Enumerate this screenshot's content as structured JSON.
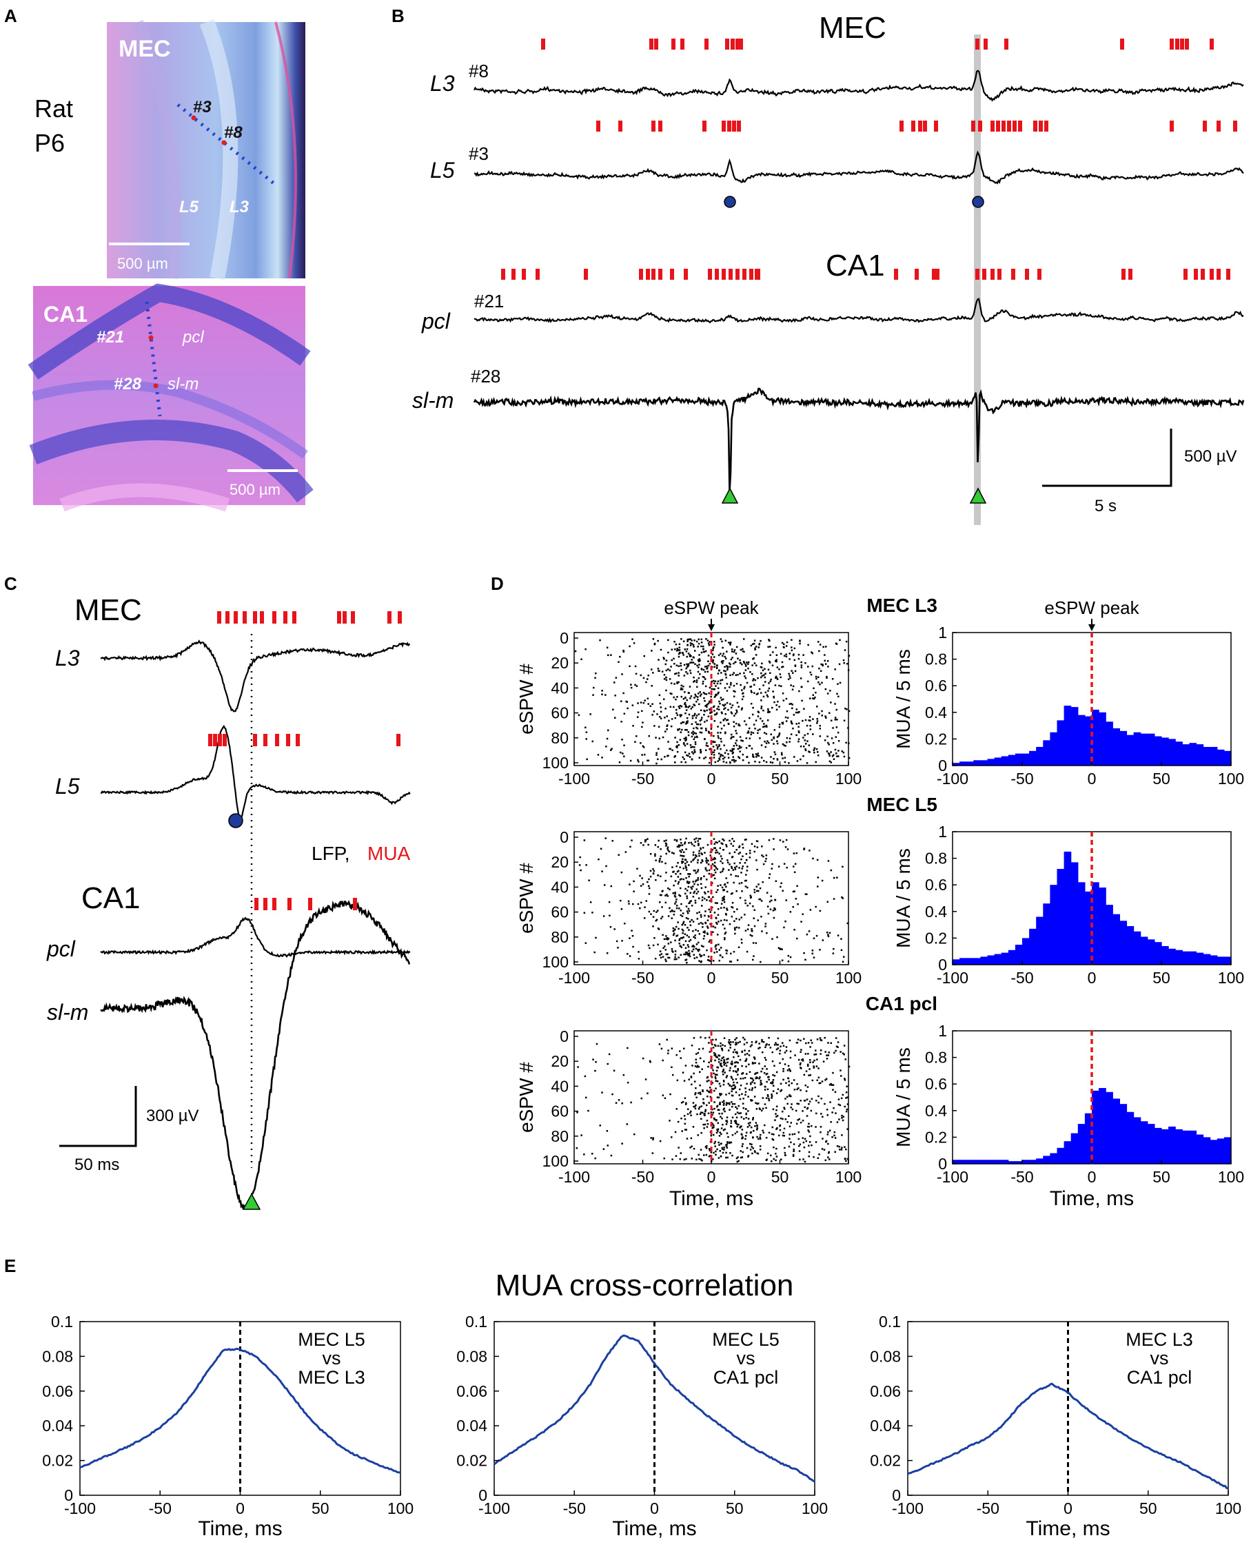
{
  "panels": {
    "A": "A",
    "B": "B",
    "C": "C",
    "D": "D",
    "E": "E"
  },
  "panel_a": {
    "species": "Rat",
    "age": "P6",
    "mec_label": "MEC",
    "ch3": "#3",
    "ch8": "#8",
    "l5": "L5",
    "l3": "L3",
    "scale_mec": "500 µm",
    "ca1_label": "CA1",
    "ch21": "#21",
    "pcl": "pcl",
    "ch28": "#28",
    "slm": "sl-m",
    "scale_ca1": "500 µm"
  },
  "panel_b": {
    "mec_title": "MEC",
    "ca1_title": "CA1",
    "traces": [
      {
        "layer": "L3",
        "channel": "#8"
      },
      {
        "layer": "L5",
        "channel": "#3"
      },
      {
        "layer": "pcl",
        "channel": "#21"
      },
      {
        "layer": "sl-m",
        "channel": "#28"
      }
    ],
    "scale_v": "500 µV",
    "scale_t": "5 s"
  },
  "panel_c": {
    "mec_title": "MEC",
    "l3": "L3",
    "l5": "L5",
    "legend_lfp": "LFP,",
    "legend_mua": "MUA",
    "ca1_title": "CA1",
    "pcl": "pcl",
    "slm": "sl-m",
    "scale_v": "300 µV",
    "scale_t": "50 ms"
  },
  "panel_d": {
    "peak_label": "eSPW peak",
    "rows": [
      {
        "title": "MEC L3"
      },
      {
        "title": "MEC L5"
      },
      {
        "title": "CA1 pcl"
      }
    ],
    "raster_ylabel": "eSPW #",
    "hist_ylabel": "MUA / 5 ms",
    "xlabel": "Time, ms",
    "x_ticks": [
      "-100",
      "-50",
      "0",
      "50",
      "100"
    ],
    "raster_y_ticks": [
      "0",
      "20",
      "40",
      "60",
      "80",
      "100"
    ],
    "hist_y_ticks": [
      "0",
      "0.2",
      "0.4",
      "0.6",
      "0.8",
      "1"
    ]
  },
  "panel_e": {
    "title": "MUA cross-correlation",
    "xlabel": "Time, ms",
    "x_ticks": [
      "-100",
      "-50",
      "0",
      "50",
      "100"
    ],
    "y_ticks": [
      "0",
      "0.02",
      "0.04",
      "0.06",
      "0.08",
      "0.1"
    ],
    "plots": [
      {
        "l1": "MEC L5",
        "l2": "vs",
        "l3": "MEC L3"
      },
      {
        "l1": "MEC L5",
        "l2": "vs",
        "l3": "CA1 pcl"
      },
      {
        "l1": "MEC L3",
        "l2": "vs",
        "l3": "CA1 pcl"
      }
    ]
  },
  "chart_data": [
    {
      "type": "bar",
      "title": "MEC L3",
      "xlabel": "Time, ms",
      "ylabel": "MUA / 5 ms",
      "xlim": [
        -100,
        100
      ],
      "ylim": [
        0,
        1
      ],
      "bin_width_ms": 5,
      "x": [
        -97.5,
        -92.5,
        -87.5,
        -82.5,
        -77.5,
        -72.5,
        -67.5,
        -62.5,
        -57.5,
        -52.5,
        -47.5,
        -42.5,
        -37.5,
        -32.5,
        -27.5,
        -22.5,
        -17.5,
        -12.5,
        -7.5,
        -2.5,
        2.5,
        7.5,
        12.5,
        17.5,
        22.5,
        27.5,
        32.5,
        37.5,
        42.5,
        47.5,
        52.5,
        57.5,
        62.5,
        67.5,
        72.5,
        77.5,
        82.5,
        87.5,
        92.5,
        97.5
      ],
      "values": [
        0.02,
        0.03,
        0.03,
        0.04,
        0.04,
        0.05,
        0.06,
        0.07,
        0.08,
        0.09,
        0.09,
        0.11,
        0.14,
        0.19,
        0.25,
        0.34,
        0.45,
        0.44,
        0.38,
        0.37,
        0.42,
        0.4,
        0.33,
        0.28,
        0.26,
        0.23,
        0.25,
        0.24,
        0.24,
        0.22,
        0.21,
        0.2,
        0.18,
        0.16,
        0.17,
        0.16,
        0.14,
        0.14,
        0.12,
        0.11
      ]
    },
    {
      "type": "bar",
      "title": "MEC L5",
      "xlabel": "Time, ms",
      "ylabel": "MUA / 5 ms",
      "xlim": [
        -100,
        100
      ],
      "ylim": [
        0,
        1
      ],
      "bin_width_ms": 5,
      "x": [
        -97.5,
        -92.5,
        -87.5,
        -82.5,
        -77.5,
        -72.5,
        -67.5,
        -62.5,
        -57.5,
        -52.5,
        -47.5,
        -42.5,
        -37.5,
        -32.5,
        -27.5,
        -22.5,
        -17.5,
        -12.5,
        -7.5,
        -2.5,
        2.5,
        7.5,
        12.5,
        17.5,
        22.5,
        27.5,
        32.5,
        37.5,
        42.5,
        47.5,
        52.5,
        57.5,
        62.5,
        67.5,
        72.5,
        77.5,
        82.5,
        87.5,
        92.5,
        97.5
      ],
      "values": [
        0.04,
        0.05,
        0.05,
        0.05,
        0.06,
        0.07,
        0.08,
        0.09,
        0.11,
        0.15,
        0.2,
        0.27,
        0.36,
        0.46,
        0.6,
        0.72,
        0.85,
        0.77,
        0.62,
        0.55,
        0.62,
        0.58,
        0.45,
        0.38,
        0.33,
        0.29,
        0.25,
        0.21,
        0.19,
        0.17,
        0.14,
        0.12,
        0.11,
        0.1,
        0.1,
        0.09,
        0.08,
        0.07,
        0.06,
        0.06
      ]
    },
    {
      "type": "bar",
      "title": "CA1 pcl",
      "xlabel": "Time, ms",
      "ylabel": "MUA / 5 ms",
      "xlim": [
        -100,
        100
      ],
      "ylim": [
        0,
        1
      ],
      "bin_width_ms": 5,
      "x": [
        -97.5,
        -92.5,
        -87.5,
        -82.5,
        -77.5,
        -72.5,
        -67.5,
        -62.5,
        -57.5,
        -52.5,
        -47.5,
        -42.5,
        -37.5,
        -32.5,
        -27.5,
        -22.5,
        -17.5,
        -12.5,
        -7.5,
        -2.5,
        2.5,
        7.5,
        12.5,
        17.5,
        22.5,
        27.5,
        32.5,
        37.5,
        42.5,
        47.5,
        52.5,
        57.5,
        62.5,
        67.5,
        72.5,
        77.5,
        82.5,
        87.5,
        92.5,
        97.5
      ],
      "values": [
        0.03,
        0.03,
        0.03,
        0.03,
        0.03,
        0.03,
        0.03,
        0.03,
        0.02,
        0.02,
        0.03,
        0.03,
        0.04,
        0.06,
        0.08,
        0.12,
        0.17,
        0.23,
        0.3,
        0.38,
        0.55,
        0.57,
        0.54,
        0.49,
        0.45,
        0.39,
        0.35,
        0.32,
        0.3,
        0.27,
        0.26,
        0.28,
        0.26,
        0.25,
        0.25,
        0.22,
        0.2,
        0.18,
        0.19,
        0.2
      ]
    },
    {
      "type": "line",
      "title": "MEC L5 vs MEC L3",
      "xlabel": "Time, ms",
      "xlim": [
        -100,
        100
      ],
      "ylim": [
        0,
        0.1
      ],
      "x": [
        -100,
        -90,
        -80,
        -70,
        -60,
        -50,
        -40,
        -30,
        -20,
        -10,
        0,
        10,
        20,
        30,
        40,
        50,
        60,
        70,
        80,
        90,
        100
      ],
      "values": [
        0.016,
        0.02,
        0.024,
        0.028,
        0.033,
        0.039,
        0.047,
        0.058,
        0.072,
        0.084,
        0.084,
        0.08,
        0.071,
        0.06,
        0.048,
        0.038,
        0.03,
        0.024,
        0.02,
        0.016,
        0.013
      ]
    },
    {
      "type": "line",
      "title": "MEC L5 vs CA1 pcl",
      "xlabel": "Time, ms",
      "xlim": [
        -100,
        100
      ],
      "ylim": [
        0,
        0.1
      ],
      "x": [
        -100,
        -90,
        -80,
        -70,
        -60,
        -50,
        -40,
        -30,
        -20,
        -10,
        0,
        10,
        20,
        30,
        40,
        50,
        60,
        70,
        80,
        90,
        100
      ],
      "values": [
        0.018,
        0.024,
        0.03,
        0.036,
        0.043,
        0.052,
        0.064,
        0.08,
        0.092,
        0.089,
        0.076,
        0.064,
        0.056,
        0.048,
        0.041,
        0.034,
        0.028,
        0.023,
        0.018,
        0.014,
        0.008
      ]
    },
    {
      "type": "line",
      "title": "MEC L3 vs CA1 pcl",
      "xlabel": "Time, ms",
      "xlim": [
        -100,
        100
      ],
      "ylim": [
        0,
        0.1
      ],
      "x": [
        -100,
        -90,
        -80,
        -70,
        -60,
        -50,
        -40,
        -30,
        -20,
        -10,
        0,
        10,
        20,
        30,
        40,
        50,
        60,
        70,
        80,
        90,
        100
      ],
      "values": [
        0.012,
        0.016,
        0.02,
        0.024,
        0.029,
        0.033,
        0.041,
        0.052,
        0.06,
        0.064,
        0.059,
        0.051,
        0.044,
        0.038,
        0.032,
        0.027,
        0.023,
        0.019,
        0.014,
        0.009,
        0.004
      ]
    }
  ]
}
